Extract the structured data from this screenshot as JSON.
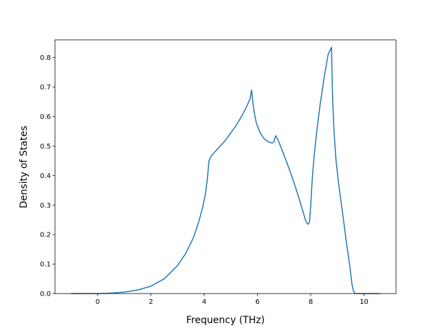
{
  "chart_data": {
    "type": "line",
    "title": "",
    "xlabel": "Frequency (THz)",
    "ylabel": "Density of States",
    "xlim": [
      -1.6,
      11.2
    ],
    "ylim": [
      0,
      0.86
    ],
    "x_ticks": [
      0,
      2,
      4,
      6,
      8,
      10
    ],
    "y_ticks": [
      0.0,
      0.1,
      0.2,
      0.3,
      0.4,
      0.5,
      0.6,
      0.7,
      0.8
    ],
    "x_tick_labels": [
      "0",
      "2",
      "4",
      "6",
      "8",
      "10"
    ],
    "y_tick_labels": [
      "0.0",
      "0.1",
      "0.2",
      "0.3",
      "0.4",
      "0.5",
      "0.6",
      "0.7",
      "0.8"
    ],
    "grid": false,
    "line_color": "#1f77b4",
    "series": [
      {
        "x": [
          -1.0,
          -0.5,
          0.0,
          0.3,
          0.6,
          1.0,
          1.5,
          2.0,
          2.5,
          3.0,
          3.3,
          3.6,
          3.8,
          3.95,
          4.05,
          4.12,
          4.18,
          4.25,
          4.4,
          4.6,
          4.8,
          5.0,
          5.2,
          5.4,
          5.6,
          5.72,
          5.78,
          5.85,
          5.95,
          6.1,
          6.25,
          6.4,
          6.55,
          6.62,
          6.68,
          6.72,
          6.8,
          6.95,
          7.1,
          7.3,
          7.5,
          7.7,
          7.8,
          7.88,
          7.95,
          8.0,
          8.05,
          8.12,
          8.2,
          8.35,
          8.5,
          8.65,
          8.78,
          8.82,
          8.88,
          8.95,
          9.05,
          9.2,
          9.35,
          9.45,
          9.55,
          9.6,
          9.65,
          9.68,
          9.75,
          10.0,
          10.3,
          10.6
        ],
        "y": [
          0.0,
          0.0,
          0.0,
          0.001,
          0.002,
          0.005,
          0.012,
          0.025,
          0.05,
          0.095,
          0.135,
          0.19,
          0.245,
          0.295,
          0.34,
          0.39,
          0.45,
          0.465,
          0.48,
          0.5,
          0.52,
          0.545,
          0.57,
          0.6,
          0.635,
          0.66,
          0.69,
          0.63,
          0.58,
          0.545,
          0.525,
          0.515,
          0.51,
          0.515,
          0.535,
          0.53,
          0.515,
          0.48,
          0.445,
          0.395,
          0.34,
          0.28,
          0.25,
          0.235,
          0.24,
          0.3,
          0.38,
          0.46,
          0.53,
          0.64,
          0.73,
          0.81,
          0.835,
          0.66,
          0.54,
          0.45,
          0.37,
          0.27,
          0.165,
          0.105,
          0.03,
          0.01,
          0.0,
          0.0,
          0.0,
          0.0,
          0.0,
          0.0
        ]
      }
    ]
  }
}
